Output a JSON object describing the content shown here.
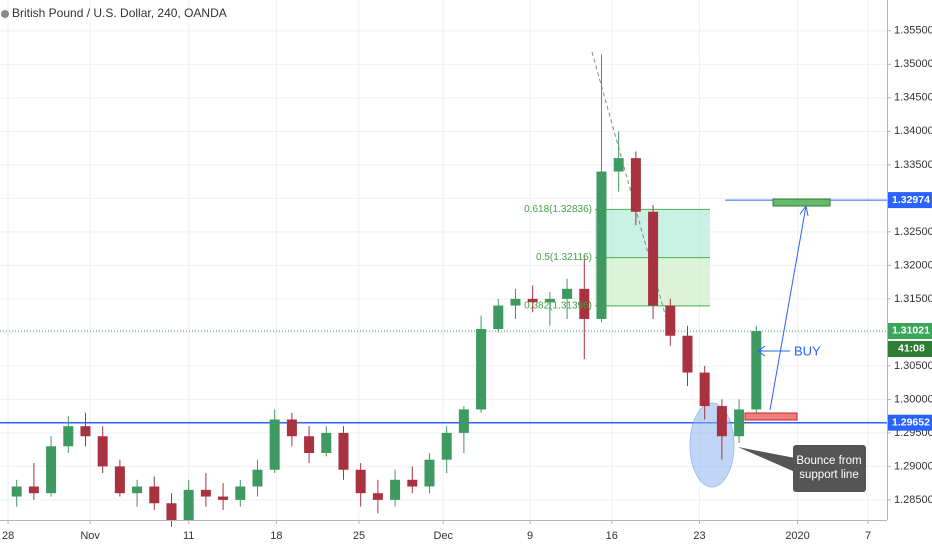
{
  "chart_data": {
    "type": "candlestick",
    "title": "British Pound / U.S. Dollar, 240, OANDA",
    "colors": {
      "up": "#3f9a62",
      "down": "#a8323f"
    },
    "xlim": [
      -0.47,
      51.1
    ],
    "ylim": [
      1.282,
      1.3596
    ],
    "grid": true,
    "xticks": [
      {
        "value": 0,
        "label": "28"
      },
      {
        "value": 4.77,
        "label": "Nov"
      },
      {
        "value": 10.5,
        "label": "11"
      },
      {
        "value": 15.6,
        "label": "18"
      },
      {
        "value": 20.4,
        "label": "25"
      },
      {
        "value": 25.3,
        "label": "Dec"
      },
      {
        "value": 30.35,
        "label": "9"
      },
      {
        "value": 35.1,
        "label": "16"
      },
      {
        "value": 40.2,
        "label": "23"
      },
      {
        "value": 45.9,
        "label": "2020"
      },
      {
        "value": 50.0,
        "label": "7"
      }
    ],
    "yticks": [
      {
        "value": 1.285,
        "label": "1.28500"
      },
      {
        "value": 1.29,
        "label": "1.29000"
      },
      {
        "value": 1.295,
        "label": "1.29500"
      },
      {
        "value": 1.3,
        "label": "1.30000"
      },
      {
        "value": 1.305,
        "label": "1.30500"
      },
      {
        "value": 1.31,
        "label": "1.31000"
      },
      {
        "value": 1.315,
        "label": "1.31500"
      },
      {
        "value": 1.32,
        "label": "1.32000"
      },
      {
        "value": 1.325,
        "label": "1.32500"
      },
      {
        "value": 1.33,
        "label": "1.33000"
      },
      {
        "value": 1.335,
        "label": "1.33500"
      },
      {
        "value": 1.34,
        "label": "1.34000"
      },
      {
        "value": 1.345,
        "label": "1.34500"
      },
      {
        "value": 1.35,
        "label": "1.35000"
      },
      {
        "value": 1.355,
        "label": "1.35500"
      }
    ],
    "candles": {
      "x": [
        0.5,
        1.5,
        2.5,
        3.5,
        4.5,
        5.5,
        6.5,
        7.5,
        8.5,
        9.5,
        10.5,
        11.5,
        12.5,
        13.5,
        14.5,
        15.5,
        16.5,
        17.5,
        18.5,
        19.5,
        20.5,
        21.5,
        22.5,
        23.5,
        24.5,
        25.5,
        26.5,
        27.5,
        28.5,
        29.5,
        30.5,
        31.5,
        32.5,
        33.5,
        34.5,
        35.5,
        36.5,
        37.5,
        38.5,
        39.5,
        40.5,
        41.5,
        42.5,
        43.5
      ],
      "open": [
        1.2855,
        1.287,
        1.286,
        1.293,
        1.296,
        1.2945,
        1.29,
        1.286,
        1.287,
        1.2845,
        1.282,
        1.2865,
        1.2855,
        1.285,
        1.287,
        1.2895,
        1.297,
        1.2945,
        1.292,
        1.295,
        1.2895,
        1.286,
        1.285,
        1.288,
        1.287,
        1.291,
        1.295,
        1.2985,
        1.3105,
        1.314,
        1.315,
        1.3145,
        1.315,
        1.3165,
        1.312,
        1.334,
        1.336,
        1.328,
        1.314,
        1.3095,
        1.304,
        1.299,
        1.2945,
        1.2985
      ],
      "high": [
        1.288,
        1.2905,
        1.2945,
        1.2975,
        1.298,
        1.296,
        1.291,
        1.288,
        1.2885,
        1.286,
        1.288,
        1.289,
        1.2875,
        1.288,
        1.291,
        1.2985,
        1.298,
        1.296,
        1.296,
        1.296,
        1.2905,
        1.288,
        1.2895,
        1.29,
        1.292,
        1.296,
        1.299,
        1.3125,
        1.315,
        1.3165,
        1.317,
        1.316,
        1.318,
        1.3215,
        1.3515,
        1.34,
        1.337,
        1.329,
        1.315,
        1.311,
        1.305,
        1.3,
        1.3,
        1.311
      ],
      "low": [
        1.284,
        1.285,
        1.2855,
        1.292,
        1.293,
        1.289,
        1.2855,
        1.284,
        1.2835,
        1.281,
        1.282,
        1.284,
        1.2835,
        1.284,
        1.2855,
        1.289,
        1.293,
        1.2905,
        1.2915,
        1.288,
        1.284,
        1.283,
        1.284,
        1.286,
        1.286,
        1.289,
        1.292,
        1.298,
        1.31,
        1.312,
        1.313,
        1.311,
        1.312,
        1.306,
        1.3115,
        1.331,
        1.326,
        1.312,
        1.308,
        1.302,
        1.297,
        1.291,
        1.2935,
        1.298
      ],
      "close": [
        1.287,
        1.286,
        1.293,
        1.296,
        1.2945,
        1.29,
        1.286,
        1.287,
        1.2845,
        1.282,
        1.2865,
        1.2855,
        1.285,
        1.287,
        1.2895,
        1.297,
        1.2945,
        1.292,
        1.295,
        1.2895,
        1.286,
        1.285,
        1.288,
        1.287,
        1.291,
        1.295,
        1.2985,
        1.3105,
        1.314,
        1.315,
        1.3145,
        1.315,
        1.3165,
        1.312,
        1.334,
        1.336,
        1.328,
        1.314,
        1.3095,
        1.304,
        1.299,
        1.2945,
        1.2985,
        1.3102
      ]
    },
    "fib_levels": [
      {
        "value": 1.32836,
        "label": "0.618(1.32836)"
      },
      {
        "value": 1.32116,
        "label": "0.5(1.32116)"
      },
      {
        "value": 1.31396,
        "label": "0.382(1.31396)"
      }
    ],
    "price_lines": [
      {
        "value": 1.32974,
        "color": "#2962ff"
      },
      {
        "value": 1.31021,
        "color": "#3aa55a"
      },
      {
        "value": 1.29652,
        "color": "#2962ff"
      }
    ],
    "countdown": "41:08",
    "annotations": {
      "buy": "BUY",
      "callout": [
        "Bounce from",
        "support line"
      ]
    }
  }
}
